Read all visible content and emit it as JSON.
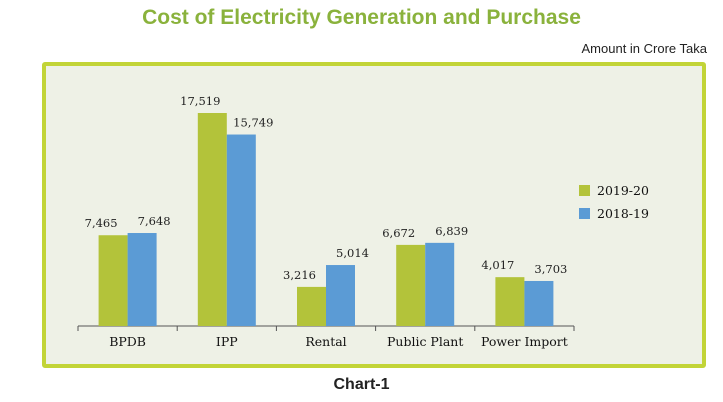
{
  "colors": {
    "title": "#8ab23c",
    "panel_fill": "#eef1e6",
    "panel_border": "#c2d437",
    "series_2019_20": "#b3c33a",
    "series_2018_19": "#5b9bd5",
    "axis": "#555555"
  },
  "header": {
    "title": "Cost of Electricity Generation and Purchase",
    "units": "Amount in Crore Taka"
  },
  "footer": {
    "caption": "Chart-1"
  },
  "chart_data": {
    "type": "bar",
    "title": "Cost of Electricity Generation and Purchase",
    "categories": [
      "BPDB",
      "IPP",
      "Rental",
      "Public Plant",
      "Power Import"
    ],
    "series": [
      {
        "name": "2019-20",
        "values": [
          7465,
          17519,
          3216,
          6672,
          4017
        ],
        "labels": [
          "7,465",
          "17,519",
          "3,216",
          "6,672",
          "4,017"
        ]
      },
      {
        "name": "2018-19",
        "values": [
          7648,
          15749,
          5014,
          6839,
          3703
        ],
        "labels": [
          "7,648",
          "15,749",
          "5,014",
          "6,839",
          "3,703"
        ]
      }
    ],
    "xlabel": "",
    "ylabel": "",
    "ylim": [
      0,
      20000
    ],
    "grid": false,
    "legend": "right"
  }
}
